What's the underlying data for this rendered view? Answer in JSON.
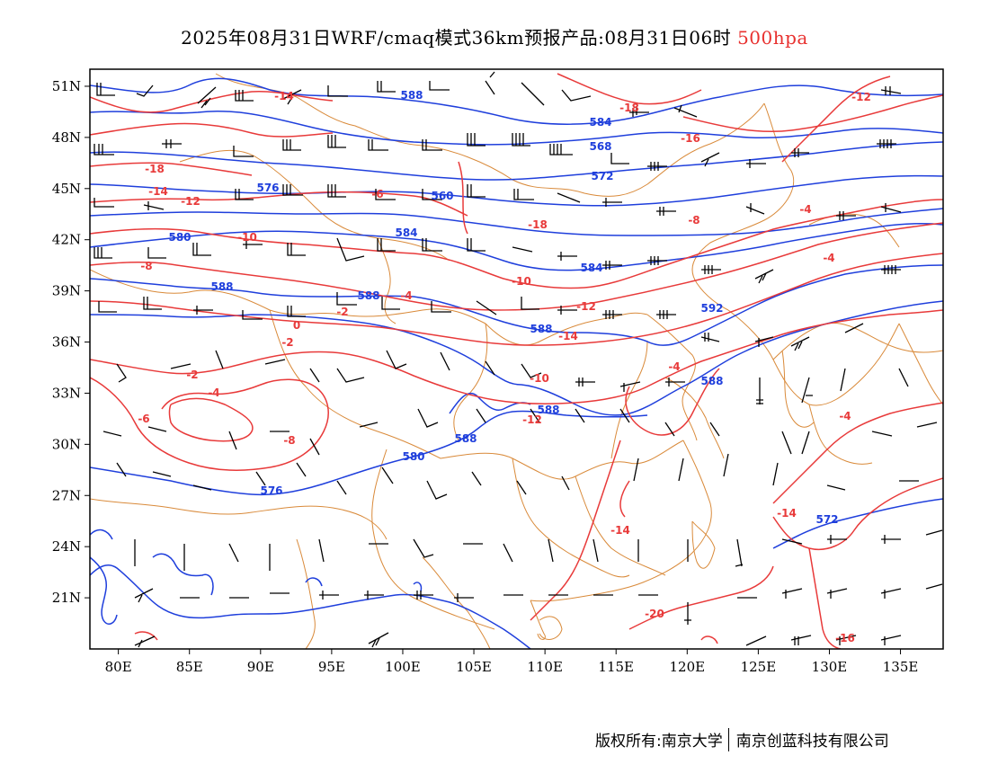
{
  "header": {
    "title": "2025年08月31日WRF/cmaq模式36km预报产品:08月31日06时",
    "level": "500hpa"
  },
  "footer": {
    "owner_left": "版权所有:南京大学",
    "owner_right": "南京创蓝科技有限公司"
  },
  "map": {
    "lon_range": [
      78,
      138
    ],
    "lat_range": [
      18,
      52
    ],
    "lon_ticks": [
      "80E",
      "85E",
      "90E",
      "95E",
      "100E",
      "105E",
      "110E",
      "115E",
      "120E",
      "125E",
      "130E",
      "135E"
    ],
    "lat_ticks": [
      "51N",
      "48N",
      "45N",
      "42N",
      "39N",
      "36N",
      "33N",
      "30N",
      "27N",
      "24N",
      "21N"
    ],
    "colors": {
      "height_contour": "#1f3fdc",
      "temp_contour": "#e83a3a",
      "boundary": "#d98a3a",
      "wind_barb": "#000000"
    },
    "height_labels": [
      "588",
      "584",
      "568",
      "572",
      "576",
      "560",
      "580",
      "584",
      "584",
      "588",
      "588",
      "588",
      "592",
      "588",
      "588",
      "588",
      "580",
      "576",
      "572"
    ],
    "temp_labels": [
      "-14",
      "-18",
      "-16",
      "-12",
      "-18",
      "-14",
      "-12",
      "-10",
      "-8",
      "-6",
      "-4",
      "-2",
      "0",
      "-2",
      "-2",
      "-4",
      "-6",
      "-8",
      "-10",
      "-12",
      "-14",
      "-12",
      "-10",
      "-8",
      "-4",
      "-4",
      "-4",
      "-4",
      "-14",
      "-20",
      "-16",
      "-14",
      "-18"
    ]
  }
}
